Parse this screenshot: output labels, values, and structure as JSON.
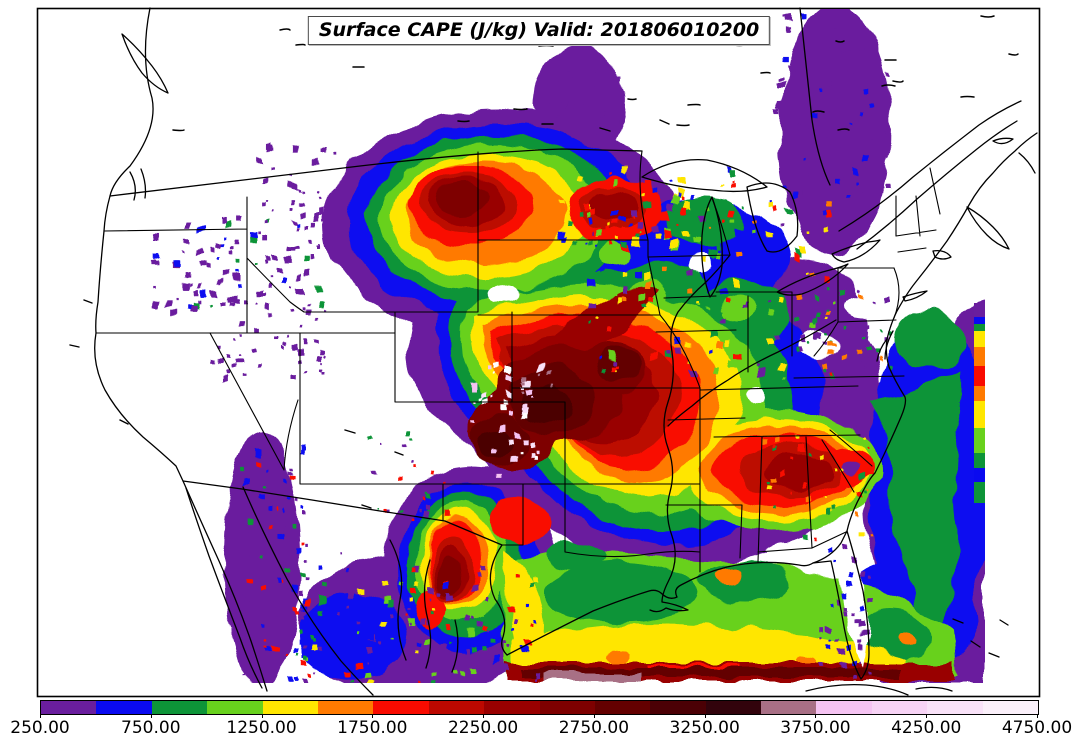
{
  "title": {
    "text": "Surface CAPE (J/kg) Valid: 201806010200"
  },
  "colorbar": {
    "units": "J/kg",
    "min": 250,
    "max": 4750,
    "segment_interval": 250,
    "tick_values": [
      250,
      750,
      1250,
      1750,
      2250,
      2750,
      3250,
      3750,
      4250,
      4750
    ],
    "tick_labels": [
      "250.00",
      "750.00",
      "1250.00",
      "1750.00",
      "2250.00",
      "2750.00",
      "3250.00",
      "3750.00",
      "4250.00",
      "4750.00"
    ],
    "segment_colors": [
      "#6A1E9E",
      "#0A0AF0",
      "#0D9438",
      "#68D11D",
      "#FFE600",
      "#FF7A00",
      "#F90B00",
      "#BC0800",
      "#990000",
      "#7E0000",
      "#640000",
      "#4B0005",
      "#32030C",
      "#A86F85",
      "#F5C3F2",
      "#F7D3F5",
      "#F9E2F8",
      "#FBF0FA"
    ]
  },
  "chart_data": {
    "type": "filled_contour_map",
    "title": "Surface CAPE (J/kg) Valid: 201806010200",
    "variable": "Surface CAPE",
    "units": "J/kg",
    "valid_time": "201806010200",
    "region": "Contiguous United States with southern Canada, northern Mexico, Gulf of Mexico and western Atlantic",
    "projection": "Lambert conformal style CONUS view with state and national borders",
    "contour_levels": [
      250,
      500,
      750,
      1000,
      1250,
      1500,
      1750,
      2000,
      2250,
      2500,
      2750,
      3000,
      3250,
      3500,
      3750,
      4000,
      4250,
      4500,
      4750
    ],
    "palette": [
      "#6A1E9E",
      "#0A0AF0",
      "#0D9438",
      "#68D11D",
      "#FFE600",
      "#FF7A00",
      "#F90B00",
      "#BC0800",
      "#990000",
      "#7E0000",
      "#640000",
      "#4B0005",
      "#32030C",
      "#A86F85",
      "#F5C3F2",
      "#F7D3F5",
      "#F9E2F8",
      "#FBF0FA"
    ],
    "legend_position": "bottom",
    "features": [
      {
        "area": "Central Plains: Nebraska, Kansas, Missouri, Oklahoma, Arkansas",
        "cape_range_jkg": "2500-4000+",
        "note": "broad extreme maximum, dark maroon with embedded light-pink pockets above 3750 J/kg"
      },
      {
        "area": "Montana, Wyoming, the Dakotas",
        "cape_range_jkg": "1500-3250",
        "note": "large storm cluster with dark red cores"
      },
      {
        "area": "West and south-central Texas",
        "cape_range_jkg": "1750-3000",
        "note": "red to dark red blob ringed by yellow and green"
      },
      {
        "area": "Mid-South and Southeast: Arkansas to Alabama and Georgia",
        "cape_range_jkg": "1250-2500",
        "note": "red band with orange and yellow surround"
      },
      {
        "area": "Gulf of Mexico",
        "cape_range_jkg": "750-1500",
        "note": "broad green field, yellow band with orange spots to the south, dark red stripe of 2250-3500 along the southern domain edge with a mauve patch"
      },
      {
        "area": "Atlantic off the Southeast coast and east of Florida",
        "cape_range_jkg": "250-1000",
        "note": "purple and blue with an offshore green band; rainbow column at the eastern data-domain edge"
      },
      {
        "area": "Upper Midwest, Great Lakes, Ohio Valley",
        "cape_range_jkg": "250-1750",
        "note": "speckled blue, green, yellow and red mottle"
      },
      {
        "area": "Intermountain West, Mexico, Baja California, Ontario and Quebec",
        "cape_range_jkg": "250-500",
        "note": "scattered purple speckles; Florida interior mostly below 250"
      }
    ]
  }
}
